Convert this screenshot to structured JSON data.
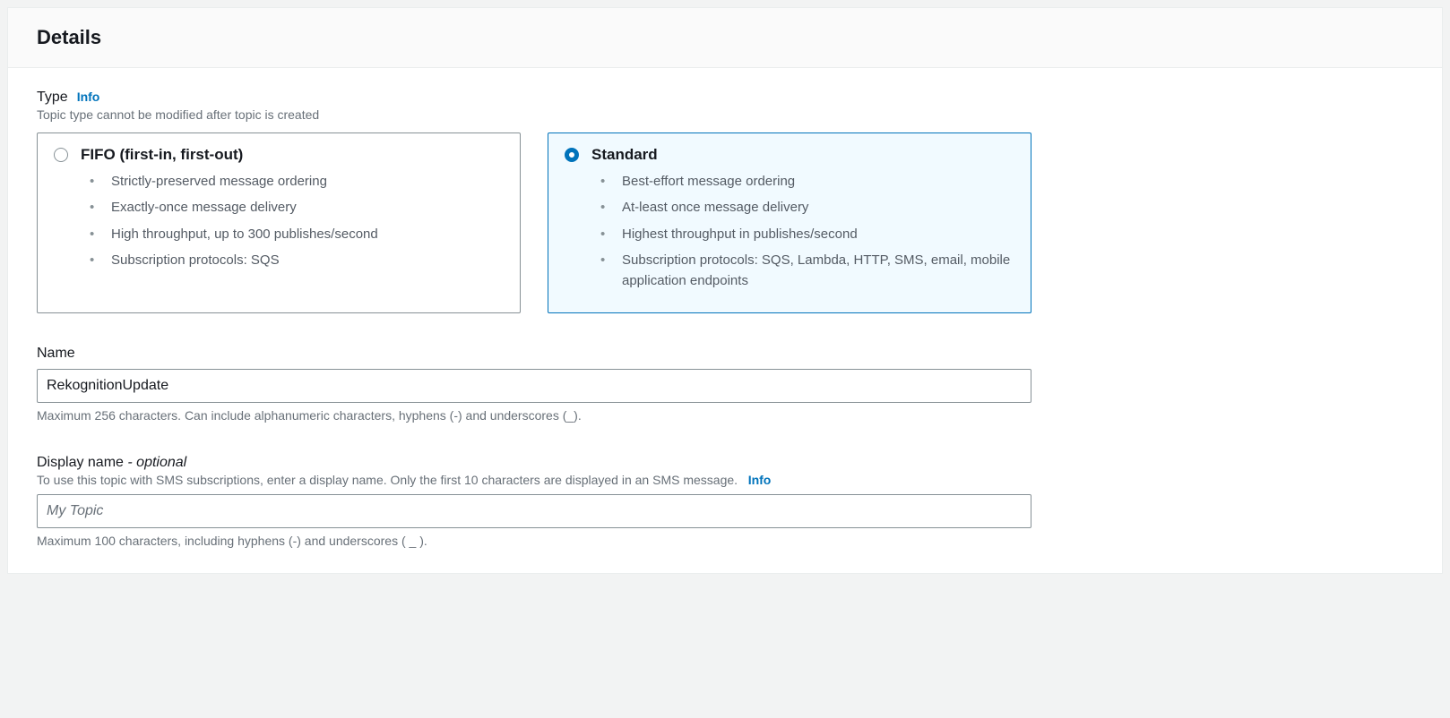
{
  "panel": {
    "title": "Details"
  },
  "type": {
    "label": "Type",
    "info": "Info",
    "help": "Topic type cannot be modified after topic is created",
    "selected": "standard",
    "options": {
      "fifo": {
        "title": "FIFO (first-in, first-out)",
        "bullets": [
          "Strictly-preserved message ordering",
          "Exactly-once message delivery",
          "High throughput, up to 300 publishes/second",
          "Subscription protocols: SQS"
        ]
      },
      "standard": {
        "title": "Standard",
        "bullets": [
          "Best-effort message ordering",
          "At-least once message delivery",
          "Highest throughput in publishes/second",
          "Subscription protocols: SQS, Lambda, HTTP, SMS, email, mobile application endpoints"
        ]
      }
    }
  },
  "name": {
    "label": "Name",
    "value": "RekognitionUpdate",
    "hint": "Maximum 256 characters. Can include alphanumeric characters, hyphens (-) and underscores (_)."
  },
  "displayName": {
    "label": "Display name",
    "optionalSuffix": "- optional",
    "help": "To use this topic with SMS subscriptions, enter a display name. Only the first 10 characters are displayed in an SMS message.",
    "info": "Info",
    "placeholder": "My Topic",
    "value": "",
    "hint": "Maximum 100 characters, including hyphens (-) and underscores ( _ )."
  },
  "colors": {
    "pageBg": "#f2f3f3",
    "panelBorder": "#eaeded",
    "headerBg": "#fafafa",
    "text": "#16191f",
    "muted": "#687078",
    "bullet": "#545b64",
    "border": "#879196",
    "accent": "#0073bb",
    "selectedBg": "#f1faff"
  }
}
